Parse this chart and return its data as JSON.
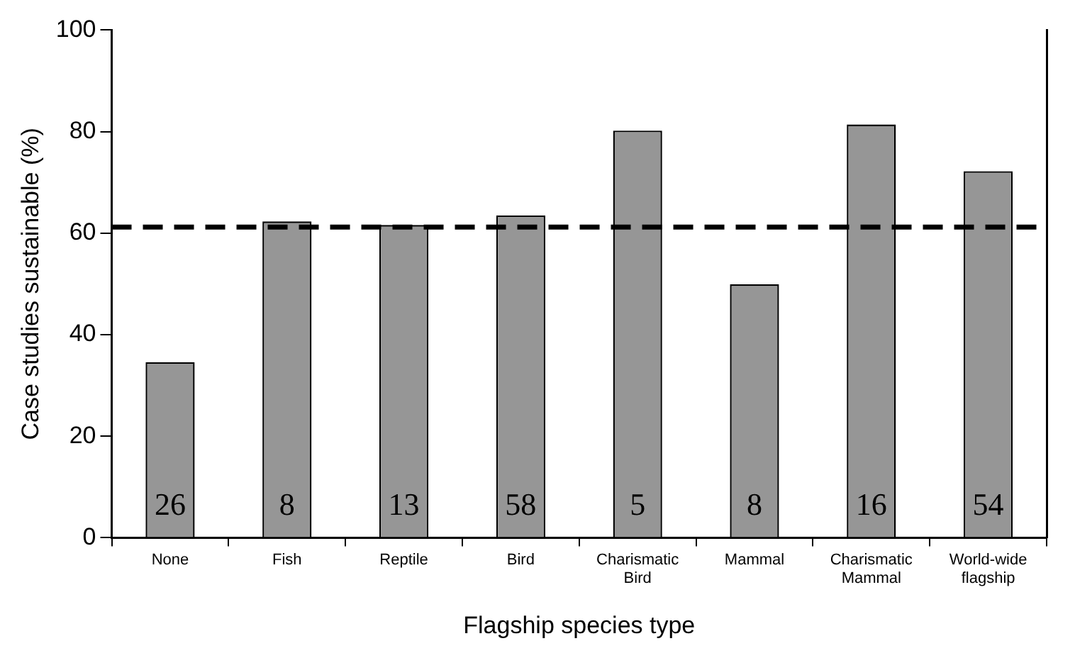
{
  "chart_data": {
    "type": "bar",
    "xlabel": "Flagship species type",
    "ylabel": "Case studies sustainable (%)",
    "categories": [
      "None",
      "Fish",
      "Reptile",
      "Bird",
      "Charismatic Bird",
      "Mammal",
      "Charismatic Mammal",
      "World-wide flagship"
    ],
    "values": [
      34.6,
      62.3,
      61.6,
      63.5,
      80.2,
      49.9,
      81.4,
      72.2
    ],
    "color": "#969696",
    "ylim": [
      0,
      100
    ],
    "yticks": [
      0,
      20,
      40,
      60,
      80,
      100
    ],
    "grid": false,
    "legend": false,
    "ref_lines": [
      {
        "axis": "y",
        "value": 61.2,
        "color": "#000000",
        "line_style": "dashed"
      }
    ],
    "annotations": [
      "26",
      "8",
      "13",
      "58",
      "5",
      "8",
      "16",
      "54"
    ]
  }
}
